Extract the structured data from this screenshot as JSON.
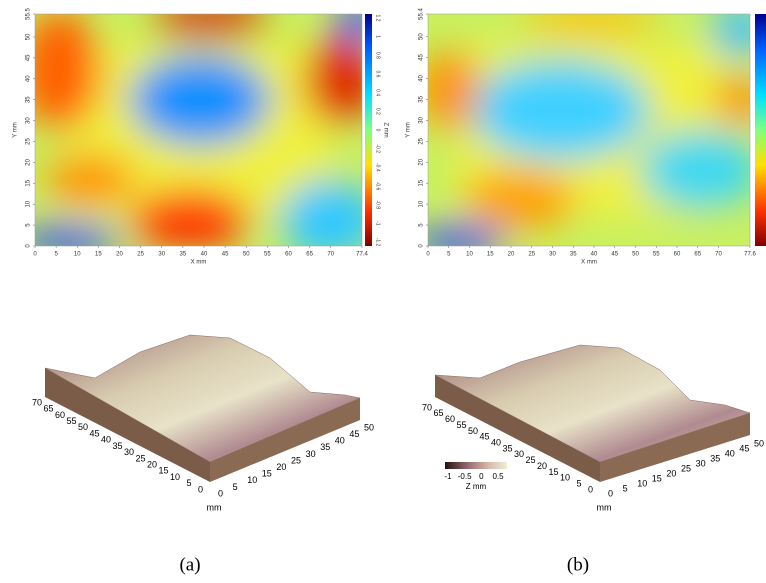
{
  "panels": [
    {
      "caption": "(a)",
      "heatmap": {
        "x_ticks": [
          0,
          5,
          10,
          15,
          20,
          25,
          30,
          35,
          40,
          45,
          50,
          55,
          60,
          65,
          70,
          77.4
        ],
        "x_label": "X mm",
        "y_ticks": [
          0,
          5,
          10,
          15,
          20,
          25,
          30,
          35,
          40,
          45,
          50,
          55.5
        ],
        "y_label": "Y mm",
        "colorbar_ticks": [
          1.2,
          1,
          0.8,
          0.6,
          0.4,
          0.2,
          0,
          -0.2,
          -0.4,
          -0.6,
          -0.8,
          -1,
          -1.2
        ],
        "colorbar_label": "Z mm"
      },
      "surface": {
        "left_ticks": [
          70,
          65,
          60,
          55,
          50,
          45,
          40,
          35,
          30,
          25,
          20,
          15,
          10,
          5,
          0
        ],
        "right_ticks": [
          0,
          5,
          10,
          15,
          20,
          25,
          30,
          35,
          40,
          45,
          50
        ],
        "unit": "mm"
      }
    },
    {
      "caption": "(b)",
      "heatmap": {
        "x_ticks": [
          0,
          5,
          10,
          15,
          20,
          25,
          30,
          35,
          40,
          45,
          50,
          55,
          60,
          65,
          70,
          77.6
        ],
        "x_label": "X mm",
        "y_ticks": [
          0,
          5,
          10,
          15,
          20,
          25,
          30,
          35,
          40,
          45,
          50,
          55.4
        ],
        "y_label": "Y mm"
      },
      "surface": {
        "left_ticks": [
          70,
          65,
          60,
          55,
          50,
          45,
          40,
          35,
          30,
          25,
          20,
          15,
          10,
          5,
          0
        ],
        "right_ticks": [
          0,
          5,
          10,
          15,
          20,
          25,
          30,
          35,
          40,
          45,
          50
        ],
        "unit": "mm",
        "colorbar_ticks": [
          -1,
          -0.5,
          0,
          0.5
        ],
        "colorbar_label": "Z mm"
      }
    }
  ]
}
